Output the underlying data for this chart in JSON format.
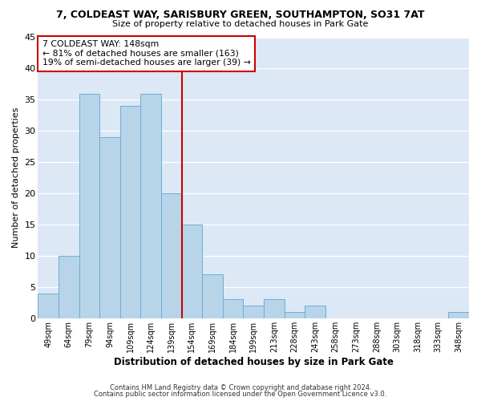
{
  "title_line1": "7, COLDEAST WAY, SARISBURY GREEN, SOUTHAMPTON, SO31 7AT",
  "title_line2": "Size of property relative to detached houses in Park Gate",
  "xlabel": "Distribution of detached houses by size in Park Gate",
  "ylabel": "Number of detached properties",
  "bar_labels": [
    "49sqm",
    "64sqm",
    "79sqm",
    "94sqm",
    "109sqm",
    "124sqm",
    "139sqm",
    "154sqm",
    "169sqm",
    "184sqm",
    "199sqm",
    "213sqm",
    "228sqm",
    "243sqm",
    "258sqm",
    "273sqm",
    "288sqm",
    "303sqm",
    "318sqm",
    "333sqm",
    "348sqm"
  ],
  "bar_values": [
    4,
    10,
    36,
    29,
    34,
    36,
    20,
    15,
    7,
    3,
    2,
    3,
    1,
    2,
    0,
    0,
    0,
    0,
    0,
    0,
    1
  ],
  "bar_color": "#b8d4e8",
  "bar_edge_color": "#6aaed6",
  "vline_color": "#cc0000",
  "ylim": [
    0,
    45
  ],
  "yticks": [
    0,
    5,
    10,
    15,
    20,
    25,
    30,
    35,
    40,
    45
  ],
  "annotation_title": "7 COLDEAST WAY: 148sqm",
  "annotation_line1": "← 81% of detached houses are smaller (163)",
  "annotation_line2": "19% of semi-detached houses are larger (39) →",
  "annotation_box_color": "#ffffff",
  "annotation_box_edge": "#cc0000",
  "footer_line1": "Contains HM Land Registry data © Crown copyright and database right 2024.",
  "footer_line2": "Contains public sector information licensed under the Open Government Licence v3.0.",
  "background_color": "#ffffff",
  "plot_bg_color": "#dce8f5"
}
